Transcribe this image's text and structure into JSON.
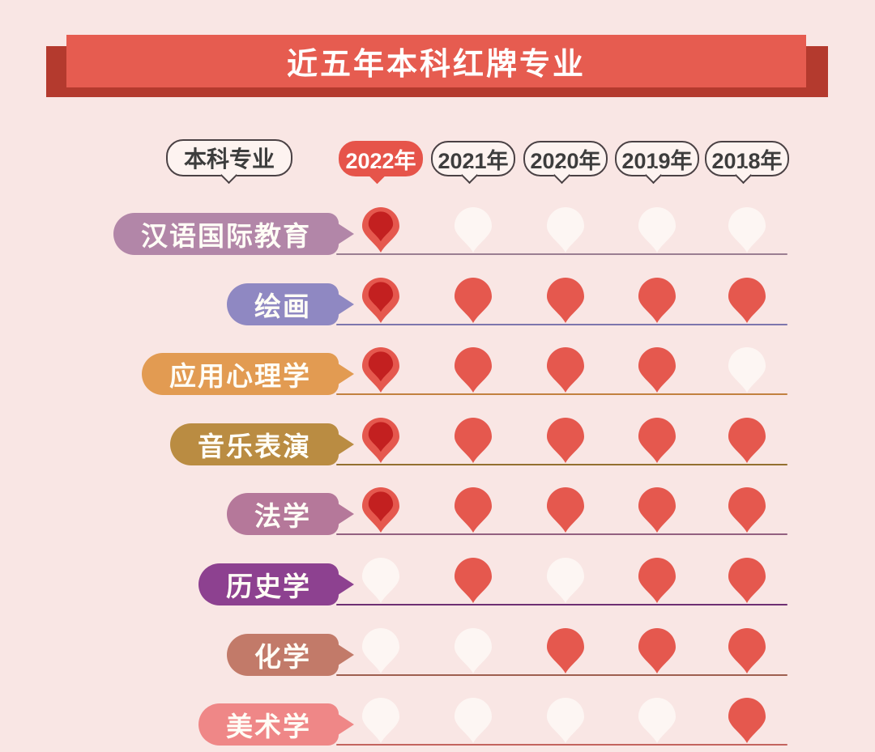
{
  "banner": {
    "title": "近五年本科红牌专业"
  },
  "header": {
    "row_label": "本科专业",
    "years": [
      {
        "label": "2022年",
        "highlighted": true
      },
      {
        "label": "2021年",
        "highlighted": false
      },
      {
        "label": "2020年",
        "highlighted": false
      },
      {
        "label": "2019年",
        "highlighted": false
      },
      {
        "label": "2018年",
        "highlighted": false
      }
    ]
  },
  "colors": {
    "background": "#f9e6e4",
    "banner_front": "#e65c50",
    "banner_back": "#b43a2e",
    "title_text": "#ffffff",
    "bubble_bg": "#fdf3f0",
    "bubble_border": "#4a4144",
    "bubble_text": "#3d3d3d",
    "year_highlight_bg": "#e6544a",
    "drop_red": "#e5584e",
    "drop_red_dark": "#c32020",
    "drop_white": "#fdf6f3"
  },
  "chart_data": {
    "type": "heatmap",
    "title": "近五年本科红牌专业",
    "columns": [
      "2022年",
      "2021年",
      "2020年",
      "2019年",
      "2018年"
    ],
    "value_legend": {
      "1": "红牌专业（红色水滴）",
      "0": "非红牌（白色水滴）"
    },
    "rows": [
      {
        "label": "汉语国际教育",
        "color": "#b286a8",
        "line_color": "#9b7e92",
        "values": [
          1,
          0,
          0,
          0,
          0
        ]
      },
      {
        "label": "绘画",
        "color": "#8f88c2",
        "line_color": "#7d76ad",
        "values": [
          1,
          1,
          1,
          1,
          1
        ]
      },
      {
        "label": "应用心理学",
        "color": "#e29b52",
        "line_color": "#c28140",
        "values": [
          1,
          1,
          1,
          1,
          0
        ]
      },
      {
        "label": "音乐表演",
        "color": "#ba8c42",
        "line_color": "#93702f",
        "values": [
          1,
          1,
          1,
          1,
          1
        ]
      },
      {
        "label": "法学",
        "color": "#b5789a",
        "line_color": "#936080",
        "values": [
          1,
          1,
          1,
          1,
          1
        ]
      },
      {
        "label": "历史学",
        "color": "#8d4190",
        "line_color": "#6e2f73",
        "values": [
          0,
          1,
          0,
          1,
          1
        ]
      },
      {
        "label": "化学",
        "color": "#c27a69",
        "line_color": "#9e5f4f",
        "values": [
          0,
          0,
          1,
          1,
          1
        ]
      },
      {
        "label": "美术学",
        "color": "#ef8787",
        "line_color": "#c4645e",
        "values": [
          0,
          0,
          0,
          0,
          1
        ]
      }
    ]
  }
}
